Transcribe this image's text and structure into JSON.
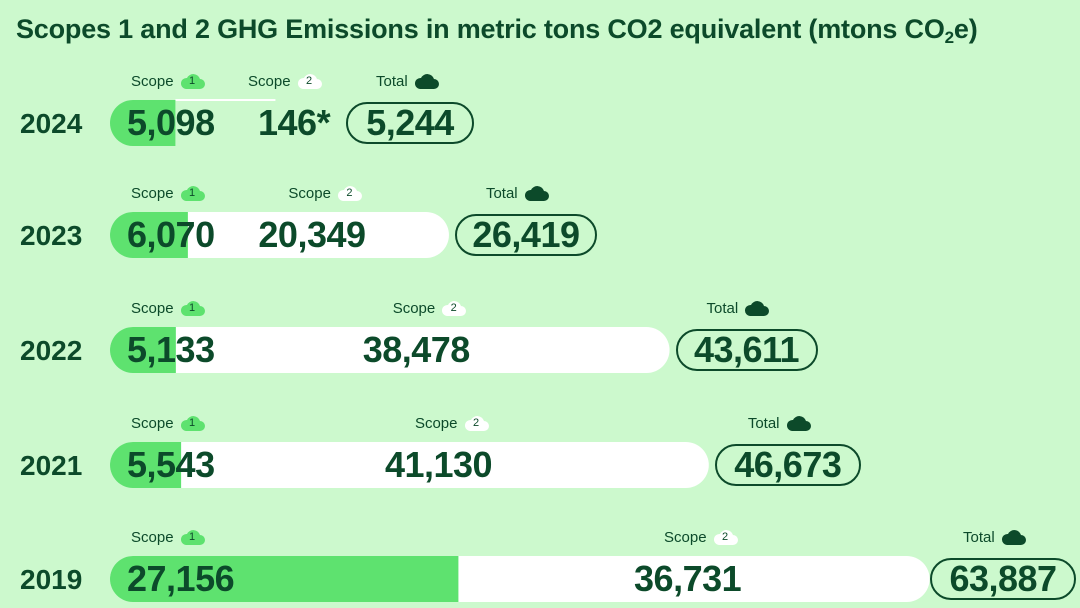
{
  "title_main": "Scopes 1 and 2 GHG Emissions in metric tons CO2 equivalent (mtons CO",
  "title_sub": "2",
  "title_end": "e)",
  "chart_data": {
    "type": "bar",
    "stacked": true,
    "orientation": "horizontal",
    "legend": {
      "scope1_label": "Scope",
      "scope1_badge": "1",
      "scope2_label": "Scope",
      "scope2_badge": "2",
      "total_label": "Total"
    },
    "categories": [
      "2024",
      "2023",
      "2022",
      "2021",
      "2019"
    ],
    "series": [
      {
        "name": "Scope 1",
        "values": [
          5098,
          6070,
          5133,
          5543,
          27156
        ],
        "labels": [
          "5,098",
          "6,070",
          "5,133",
          "5,543",
          "27,156"
        ]
      },
      {
        "name": "Scope 2",
        "values": [
          146,
          20349,
          38478,
          41130,
          36731
        ],
        "labels": [
          "146*",
          "20,349",
          "38,478",
          "41,130",
          "36,731"
        ]
      }
    ],
    "totals": [
      5244,
      26419,
      43611,
      46673,
      63887
    ],
    "total_labels": [
      "5,244",
      "26,419",
      "43,611",
      "46,673",
      "63,887"
    ],
    "colors": {
      "scope1": "#5ee26f",
      "scope2": "#ffffff",
      "text": "#0c4a2a",
      "background": "#ccf9cd",
      "cloud1": "#5ee26f",
      "cloud2": "#ffffff",
      "cloud_total": "#0c4a2a"
    }
  }
}
